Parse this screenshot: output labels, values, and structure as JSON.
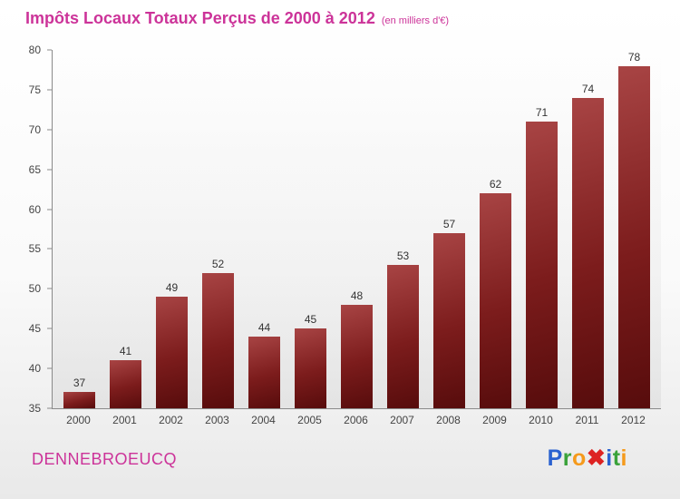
{
  "header": {
    "title": "Impôts Locaux Totaux Perçus de 2000 à 2012",
    "subtitle": "(en milliers d'€)"
  },
  "chart_data": {
    "type": "bar",
    "title": "Impôts Locaux Totaux Perçus de 2000 à 2012 (en milliers d'€)",
    "categories": [
      "2000",
      "2001",
      "2002",
      "2003",
      "2004",
      "2005",
      "2006",
      "2007",
      "2008",
      "2009",
      "2010",
      "2011",
      "2012"
    ],
    "values": [
      37,
      41,
      49,
      52,
      44,
      45,
      48,
      53,
      57,
      62,
      71,
      74,
      78
    ],
    "xlabel": "",
    "ylabel": "",
    "ylim": [
      35,
      80
    ],
    "ytick_step": 5,
    "grid": false,
    "legend": false,
    "bar_color_top": "#a84444",
    "bar_color_bottom": "#570c0c"
  },
  "footer": {
    "commune": "DENNEBROEUCQ",
    "logo": {
      "name": "Proxiti",
      "letters": [
        {
          "ch": "P",
          "color": "#2b62d0"
        },
        {
          "ch": "r",
          "color": "#3aa23a"
        },
        {
          "ch": "o",
          "color": "#f59a1c"
        },
        {
          "ch": "✖",
          "color": "#dd2222"
        },
        {
          "ch": "i",
          "color": "#2b62d0"
        },
        {
          "ch": "t",
          "color": "#3aa23a"
        },
        {
          "ch": "i",
          "color": "#f59a1c"
        }
      ]
    }
  },
  "colors": {
    "accent_pink": "#cc3399",
    "axis_text": "#444444"
  }
}
